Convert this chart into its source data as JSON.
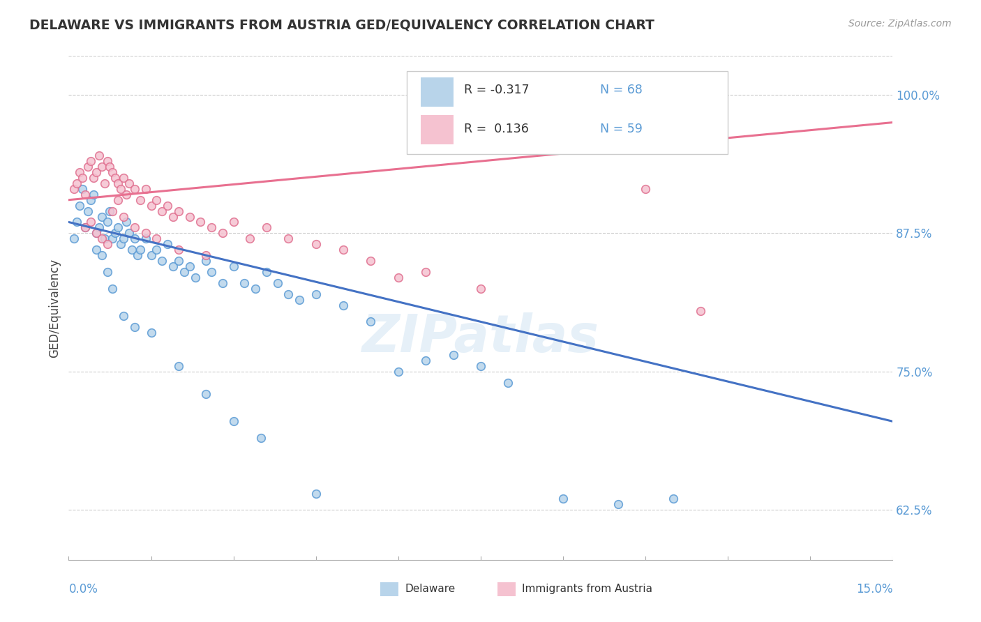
{
  "title": "DELAWARE VS IMMIGRANTS FROM AUSTRIA GED/EQUIVALENCY CORRELATION CHART",
  "source": "Source: ZipAtlas.com",
  "ylabel": "GED/Equivalency",
  "xrange": [
    0.0,
    15.0
  ],
  "yrange": [
    58.0,
    103.5
  ],
  "ytick_values": [
    62.5,
    75.0,
    87.5,
    100.0
  ],
  "color_delaware_fill": "#b8d4ea",
  "color_delaware_edge": "#5b9bd5",
  "color_austria_fill": "#f5c2d0",
  "color_austria_edge": "#e07090",
  "color_line_delaware": "#4472c4",
  "color_line_austria": "#e87090",
  "watermark": "ZIPatlas",
  "del_trend_x0": 0.0,
  "del_trend_y0": 88.5,
  "del_trend_x1": 15.0,
  "del_trend_y1": 70.5,
  "aut_trend_x0": 0.0,
  "aut_trend_y0": 90.5,
  "aut_trend_x1": 15.0,
  "aut_trend_y1": 97.5,
  "delaware_x": [
    0.1,
    0.15,
    0.2,
    0.25,
    0.3,
    0.35,
    0.4,
    0.45,
    0.5,
    0.55,
    0.6,
    0.65,
    0.7,
    0.75,
    0.8,
    0.85,
    0.9,
    0.95,
    1.0,
    1.05,
    1.1,
    1.15,
    1.2,
    1.25,
    1.3,
    1.4,
    1.5,
    1.6,
    1.7,
    1.8,
    1.9,
    2.0,
    2.1,
    2.2,
    2.3,
    2.5,
    2.6,
    2.8,
    3.0,
    3.2,
    3.4,
    3.6,
    3.8,
    4.0,
    4.2,
    4.5,
    5.0,
    5.5,
    6.0,
    6.5,
    7.0,
    7.5,
    8.0,
    9.0,
    10.0,
    11.0,
    0.5,
    0.6,
    0.7,
    0.8,
    1.0,
    1.2,
    1.5,
    2.0,
    2.5,
    3.0,
    3.5,
    4.5
  ],
  "delaware_y": [
    87.0,
    88.5,
    90.0,
    91.5,
    88.0,
    89.5,
    90.5,
    91.0,
    87.5,
    88.0,
    89.0,
    87.0,
    88.5,
    89.5,
    87.0,
    87.5,
    88.0,
    86.5,
    87.0,
    88.5,
    87.5,
    86.0,
    87.0,
    85.5,
    86.0,
    87.0,
    85.5,
    86.0,
    85.0,
    86.5,
    84.5,
    85.0,
    84.0,
    84.5,
    83.5,
    85.0,
    84.0,
    83.0,
    84.5,
    83.0,
    82.5,
    84.0,
    83.0,
    82.0,
    81.5,
    82.0,
    81.0,
    79.5,
    75.0,
    76.0,
    76.5,
    75.5,
    74.0,
    63.5,
    63.0,
    63.5,
    86.0,
    85.5,
    84.0,
    82.5,
    80.0,
    79.0,
    78.5,
    75.5,
    73.0,
    70.5,
    69.0,
    64.0
  ],
  "austria_x": [
    0.1,
    0.15,
    0.2,
    0.25,
    0.3,
    0.35,
    0.4,
    0.45,
    0.5,
    0.55,
    0.6,
    0.65,
    0.7,
    0.75,
    0.8,
    0.85,
    0.9,
    0.95,
    1.0,
    1.05,
    1.1,
    1.2,
    1.3,
    1.4,
    1.5,
    1.6,
    1.7,
    1.8,
    1.9,
    2.0,
    2.2,
    2.4,
    2.6,
    2.8,
    3.0,
    3.3,
    3.6,
    4.0,
    4.5,
    5.0,
    5.5,
    6.0,
    6.5,
    7.5,
    10.5,
    11.5,
    0.3,
    0.4,
    0.5,
    0.6,
    0.7,
    0.8,
    0.9,
    1.0,
    1.2,
    1.4,
    1.6,
    2.0,
    2.5
  ],
  "austria_y": [
    91.5,
    92.0,
    93.0,
    92.5,
    91.0,
    93.5,
    94.0,
    92.5,
    93.0,
    94.5,
    93.5,
    92.0,
    94.0,
    93.5,
    93.0,
    92.5,
    92.0,
    91.5,
    92.5,
    91.0,
    92.0,
    91.5,
    90.5,
    91.5,
    90.0,
    90.5,
    89.5,
    90.0,
    89.0,
    89.5,
    89.0,
    88.5,
    88.0,
    87.5,
    88.5,
    87.0,
    88.0,
    87.0,
    86.5,
    86.0,
    85.0,
    83.5,
    84.0,
    82.5,
    91.5,
    80.5,
    88.0,
    88.5,
    87.5,
    87.0,
    86.5,
    89.5,
    90.5,
    89.0,
    88.0,
    87.5,
    87.0,
    86.0,
    85.5
  ]
}
